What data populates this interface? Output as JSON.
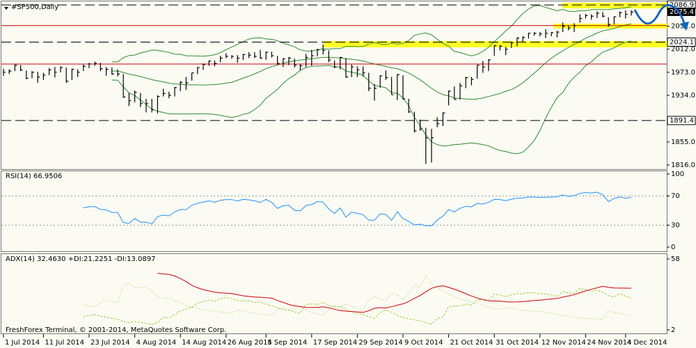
{
  "chart_data": [
    {
      "type": "ohlc",
      "title": "#SP500,Daily",
      "categories": [
        "1 Jul 2014",
        null,
        null,
        null,
        null,
        null,
        null,
        "11 Jul 2014",
        null,
        null,
        null,
        null,
        null,
        null,
        null,
        "23 Jul 2014",
        null,
        null,
        null,
        null,
        null,
        null,
        null,
        "4 Aug 2014",
        null,
        null,
        null,
        null,
        null,
        null,
        null,
        "14 Aug 2014",
        null,
        null,
        null,
        null,
        null,
        null,
        null,
        "26 Aug 2014",
        null,
        null,
        null,
        null,
        null,
        null,
        "5 Sep 2014",
        null,
        null,
        null,
        null,
        null,
        null,
        null,
        "17 Sep 2014",
        null,
        null,
        null,
        null,
        null,
        null,
        null,
        "29 Sep 2014",
        null,
        null,
        null,
        null,
        null,
        null,
        null,
        "9 Oct 2014",
        null,
        null,
        null,
        null,
        null,
        null,
        null,
        "21 Oct 2014",
        null,
        null,
        null,
        null,
        null,
        null,
        null,
        "31 Oct 2014",
        null,
        null,
        null,
        null,
        null,
        null,
        null,
        "12 Nov 2014",
        null,
        null,
        null,
        null,
        null,
        null,
        null,
        "24 Nov 2014",
        null,
        null,
        null,
        null,
        null,
        null,
        "4 Dec 2014",
        null
      ],
      "high": [
        1979,
        1978,
        1986,
        1985,
        1976,
        1975,
        1974,
        1972,
        1980,
        1982,
        1983,
        1981,
        1979,
        1978,
        1986,
        1989,
        1991,
        1989,
        1982,
        1981,
        1978,
        1970,
        1938,
        1942,
        1938,
        1928,
        1928,
        1934,
        1945,
        1940,
        1948,
        1958,
        1965,
        1972,
        1982,
        1988,
        1993,
        1993,
        2001,
        2005,
        2002,
        2002,
        2004,
        2007,
        2007,
        2011,
        2008,
        2008,
        2001,
        1997,
        1999,
        1996,
        1987,
        2004,
        2011,
        2013,
        2020,
        2010,
        1993,
        1999,
        1997,
        1986,
        1983,
        1983,
        1972,
        1953,
        1968,
        1976,
        1965,
        1970,
        1968,
        1928,
        1906,
        1893,
        1879,
        1877,
        1897,
        1905,
        1942,
        1949,
        1955,
        1965,
        1965,
        1985,
        1992,
        1995,
        2019,
        2019,
        2016,
        2024,
        2032,
        2034,
        2040,
        2041,
        2041,
        2046,
        2041,
        2043,
        2057,
        2052,
        2056,
        2071,
        2072,
        2071,
        2076,
        2075,
        2066,
        2068,
        2076,
        2078,
        2078
      ],
      "low": [
        1967,
        1970,
        1975,
        1975,
        1961,
        1963,
        1955,
        1960,
        1968,
        1964,
        1973,
        1955,
        1960,
        1965,
        1975,
        1980,
        1984,
        1975,
        1967,
        1969,
        1966,
        1930,
        1916,
        1922,
        1914,
        1905,
        1905,
        1903,
        1932,
        1929,
        1932,
        1941,
        1943,
        1959,
        1970,
        1977,
        1984,
        1983,
        1990,
        1997,
        1996,
        1989,
        1994,
        1997,
        1997,
        1996,
        1994,
        1998,
        1986,
        1982,
        1985,
        1981,
        1976,
        1982,
        1984,
        2000,
        2003,
        1990,
        1980,
        1978,
        1964,
        1965,
        1965,
        1966,
        1941,
        1925,
        1947,
        1960,
        1935,
        1926,
        1927,
        1904,
        1871,
        1874,
        1818,
        1820,
        1880,
        1882,
        1917,
        1927,
        1927,
        1946,
        1951,
        1962,
        1972,
        1975,
        2001,
        2010,
        2002,
        2014,
        2017,
        2024,
        2030,
        2035,
        2034,
        2031,
        2034,
        2032,
        2041,
        2044,
        2041,
        2057,
        2064,
        2062,
        2065,
        2066,
        2050,
        2054,
        2066,
        2064,
        2069
      ],
      "close": [
        1973,
        1975,
        1985,
        1977,
        1963,
        1973,
        1965,
        1968,
        1977,
        1973,
        1981,
        1958,
        1978,
        1973,
        1983,
        1987,
        1988,
        1979,
        1978,
        1970,
        1970,
        1931,
        1925,
        1939,
        1920,
        1920,
        1910,
        1932,
        1937,
        1934,
        1947,
        1956,
        1955,
        1972,
        1981,
        1986,
        1992,
        1988,
        1997,
        2000,
        2000,
        1997,
        2003,
        2002,
        2000,
        1997,
        2007,
        2001,
        1988,
        1996,
        1997,
        1985,
        1984,
        1998,
        2001,
        2011,
        2010,
        1994,
        1982,
        1998,
        1965,
        1982,
        1977,
        1972,
        1946,
        1946,
        1967,
        1964,
        1935,
        1969,
        1928,
        1906,
        1874,
        1877,
        1862,
        1862,
        1886,
        1904,
        1941,
        1927,
        1950,
        1964,
        1961,
        1985,
        1982,
        1994,
        2018,
        2017,
        2012,
        2023,
        2031,
        2032,
        2039,
        2039,
        2038,
        2039,
        2040,
        2041,
        2051,
        2048,
        2052,
        2064,
        2069,
        2068,
        2073,
        2068,
        2054,
        2067,
        2074,
        2071,
        2075
      ],
      "ylim": [
        1809,
        2093
      ],
      "yticks": [
        {
          "value": 2051,
          "label": "2051.0"
        },
        {
          "value": 2012,
          "label": "2012.0"
        },
        {
          "value": 1973,
          "label": "1973.0"
        },
        {
          "value": 1934,
          "label": "1934.0"
        },
        {
          "value": 1855,
          "label": "1855.0"
        },
        {
          "value": 1816,
          "label": "1816.0"
        }
      ],
      "levels": [
        2086.9,
        2024.1,
        1891.4
      ],
      "red_levels": [
        2052,
        1987
      ],
      "current_price": 2075.4,
      "bar_color": "#000000",
      "band_color": "#2e8b2e",
      "level_color": "#000000",
      "red_color": "#cc0000"
    },
    {
      "type": "rsi",
      "label": "RSI(14) 66.9506",
      "ylim": [
        0,
        100
      ],
      "yticks": [
        0,
        30,
        70,
        100
      ],
      "color": "#1e90ff"
    },
    {
      "type": "adx",
      "label": "ADX(14) 32.4630 +DI:21.2251 -DI:13.0897",
      "ylim": [
        2,
        58
      ],
      "yticks": [
        2,
        58
      ],
      "color": "#cc0000",
      "plus_color": "#9acd32",
      "minus_color": "#c8d88a"
    }
  ],
  "footer": "FreshForex Terminal, © 2001-2014, MetaQuotes Software Corp."
}
